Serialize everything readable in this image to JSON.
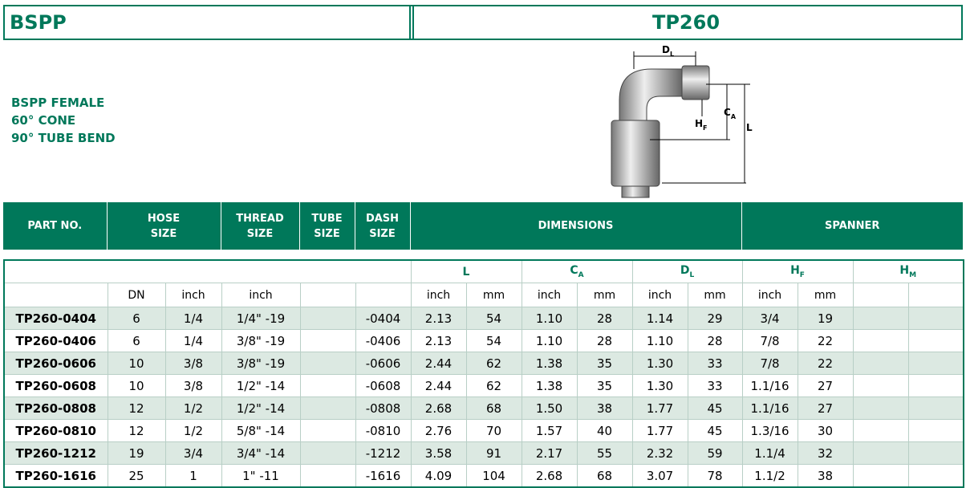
{
  "header": {
    "left": "BSPP",
    "right": "TP260"
  },
  "description": [
    "BSPP FEMALE",
    "60° CONE",
    "90° TUBE BEND"
  ],
  "diagram": {
    "labels": [
      {
        "main": "D",
        "sub": "L"
      },
      {
        "main": "C",
        "sub": "A"
      },
      {
        "main": "H",
        "sub": "F"
      },
      {
        "main": "L"
      }
    ]
  },
  "table": {
    "columns": [
      "PART NO.",
      "HOSE\nSIZE",
      "THREAD\nSIZE",
      "TUBE\nSIZE",
      "DASH\nSIZE",
      "DIMENSIONS",
      "SPANNER"
    ],
    "groups": [
      {
        "main": "L"
      },
      {
        "main": "C",
        "sub": "A"
      },
      {
        "main": "D",
        "sub": "L"
      },
      {
        "main": "H",
        "sub": "F"
      },
      {
        "main": "H",
        "sub": "M"
      }
    ],
    "units": [
      null,
      "DN",
      "inch",
      "inch",
      null,
      null,
      "inch",
      "mm",
      "inch",
      "mm",
      "inch",
      "mm",
      "inch",
      "mm",
      null,
      null
    ],
    "rows": [
      [
        "TP260-0404",
        "6",
        "1/4",
        "1/4\" -19",
        null,
        "-0404",
        "2.13",
        "54",
        "1.10",
        "28",
        "1.14",
        "29",
        "3/4",
        "19",
        null,
        null
      ],
      [
        "TP260-0406",
        "6",
        "1/4",
        "3/8\" -19",
        null,
        "-0406",
        "2.13",
        "54",
        "1.10",
        "28",
        "1.10",
        "28",
        "7/8",
        "22",
        null,
        null
      ],
      [
        "TP260-0606",
        "10",
        "3/8",
        "3/8\" -19",
        null,
        "-0606",
        "2.44",
        "62",
        "1.38",
        "35",
        "1.30",
        "33",
        "7/8",
        "22",
        null,
        null
      ],
      [
        "TP260-0608",
        "10",
        "3/8",
        "1/2\" -14",
        null,
        "-0608",
        "2.44",
        "62",
        "1.38",
        "35",
        "1.30",
        "33",
        "1.1/16",
        "27",
        null,
        null
      ],
      [
        "TP260-0808",
        "12",
        "1/2",
        "1/2\" -14",
        null,
        "-0808",
        "2.68",
        "68",
        "1.50",
        "38",
        "1.77",
        "45",
        "1.1/16",
        "27",
        null,
        null
      ],
      [
        "TP260-0810",
        "12",
        "1/2",
        "5/8\" -14",
        null,
        "-0810",
        "2.76",
        "70",
        "1.57",
        "40",
        "1.77",
        "45",
        "1.3/16",
        "30",
        null,
        null
      ],
      [
        "TP260-1212",
        "19",
        "3/4",
        "3/4\" -14",
        null,
        "-1212",
        "3.58",
        "91",
        "2.17",
        "55",
        "2.32",
        "59",
        "1.1/4",
        "32",
        null,
        null
      ],
      [
        "TP260-1616",
        "25",
        "1",
        "1\" -11",
        null,
        "-1616",
        "4.09",
        "104",
        "2.68",
        "68",
        "3.07",
        "78",
        "1.1/2",
        "38",
        null,
        null
      ]
    ]
  }
}
